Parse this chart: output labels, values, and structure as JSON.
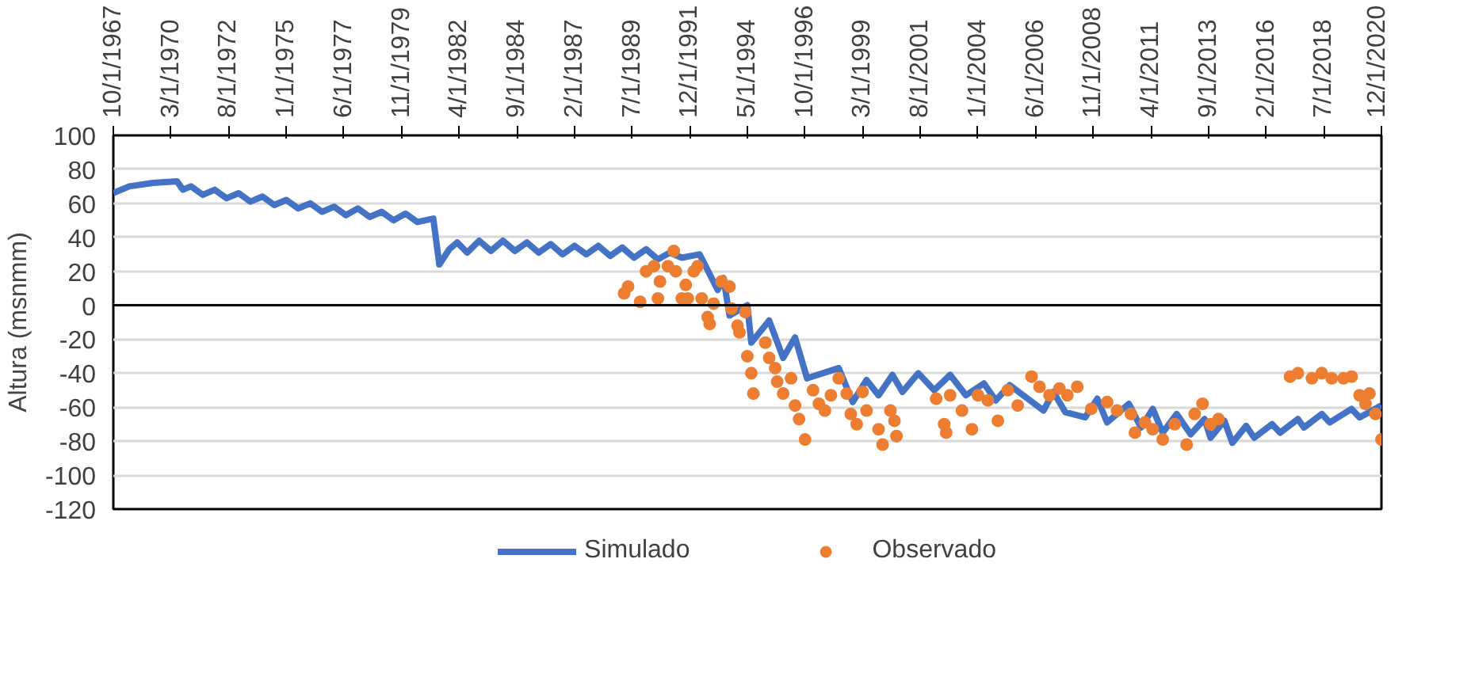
{
  "chart_data": {
    "type": "line",
    "ylabel": "Altura (msnmm)",
    "xlim": [
      "1967-10-01",
      "2020-12-01"
    ],
    "xticks": [
      {
        "value": "1967-10-01",
        "label": "10/1/1967"
      },
      {
        "value": "1970-03-01",
        "label": "3/1/1970"
      },
      {
        "value": "1972-08-01",
        "label": "8/1/1972"
      },
      {
        "value": "1975-01-01",
        "label": "1/1/1975"
      },
      {
        "value": "1977-06-01",
        "label": "6/1/1977"
      },
      {
        "value": "1979-11-01",
        "label": "11/1/1979"
      },
      {
        "value": "1982-04-01",
        "label": "4/1/1982"
      },
      {
        "value": "1984-09-01",
        "label": "9/1/1984"
      },
      {
        "value": "1987-02-01",
        "label": "2/1/1987"
      },
      {
        "value": "1989-07-01",
        "label": "7/1/1989"
      },
      {
        "value": "1991-12-01",
        "label": "12/1/1991"
      },
      {
        "value": "1994-05-01",
        "label": "5/1/1994"
      },
      {
        "value": "1996-10-01",
        "label": "10/1/1996"
      },
      {
        "value": "1999-03-01",
        "label": "3/1/1999"
      },
      {
        "value": "2001-08-01",
        "label": "8/1/2001"
      },
      {
        "value": "2004-01-01",
        "label": "1/1/2004"
      },
      {
        "value": "2006-06-01",
        "label": "6/1/2006"
      },
      {
        "value": "2008-11-01",
        "label": "11/1/2008"
      },
      {
        "value": "2011-04-01",
        "label": "4/1/2011"
      },
      {
        "value": "2013-09-01",
        "label": "9/1/2013"
      },
      {
        "value": "2016-02-01",
        "label": "2/1/2016"
      },
      {
        "value": "2018-07-01",
        "label": "7/1/2018"
      },
      {
        "value": "2020-12-01",
        "label": "12/1/2020"
      }
    ],
    "ylim": [
      -120,
      100
    ],
    "yticks": [
      100,
      80,
      60,
      40,
      20,
      0,
      -20,
      -40,
      -60,
      -80,
      -100,
      -120
    ],
    "grid": "y",
    "legend": "bottom",
    "marker": "none",
    "ref_lines": [
      {
        "axis": "y",
        "value": 0,
        "color": "#000000"
      }
    ],
    "series": [
      {
        "name": "Simulado",
        "color": "#4472c4",
        "x": [
          "1967-10",
          "1968-06",
          "1969-06",
          "1970-06",
          "1970-09",
          "1971-01",
          "1971-07",
          "1972-01",
          "1972-07",
          "1973-01",
          "1973-07",
          "1974-01",
          "1974-07",
          "1975-01",
          "1975-07",
          "1976-01",
          "1976-07",
          "1977-01",
          "1977-07",
          "1978-01",
          "1978-07",
          "1979-01",
          "1979-07",
          "1980-01",
          "1980-07",
          "1981-03",
          "1981-06",
          "1981-11",
          "1982-03",
          "1982-08",
          "1983-02",
          "1983-08",
          "1984-02",
          "1984-08",
          "1985-02",
          "1985-08",
          "1986-02",
          "1986-08",
          "1987-02",
          "1987-08",
          "1988-02",
          "1988-08",
          "1989-02",
          "1989-08",
          "1990-02",
          "1990-08",
          "1991-02",
          "1991-08",
          "1992-05",
          "1993-02",
          "1993-05",
          "1993-08",
          "1994-05",
          "1994-07",
          "1995-04",
          "1995-11",
          "1996-05",
          "1996-11",
          "1998-03",
          "1998-10",
          "1999-05",
          "1999-11",
          "2000-06",
          "2000-11",
          "2001-07",
          "2002-03",
          "2002-11",
          "2003-07",
          "2004-04",
          "2004-10",
          "2005-05",
          "2006-10",
          "2007-03",
          "2007-09",
          "2008-07",
          "2009-01",
          "2009-06",
          "2010-05",
          "2010-11",
          "2011-05",
          "2011-10",
          "2012-05",
          "2012-12",
          "2013-07",
          "2013-10",
          "2014-05",
          "2014-09",
          "2015-04",
          "2015-08",
          "2016-05",
          "2016-09",
          "2017-06",
          "2017-09",
          "2018-06",
          "2018-10",
          "2019-09",
          "2020-01",
          "2020-12"
        ],
        "values": [
          66,
          70,
          72,
          73,
          68,
          70,
          65,
          68,
          63,
          66,
          61,
          64,
          59,
          62,
          57,
          60,
          55,
          58,
          53,
          57,
          52,
          55,
          50,
          54,
          49,
          51,
          24,
          33,
          37,
          31,
          38,
          32,
          38,
          32,
          37,
          31,
          36,
          30,
          35,
          30,
          35,
          29,
          34,
          28,
          33,
          27,
          31,
          28,
          30,
          9,
          16,
          -6,
          0,
          -22,
          -9,
          -31,
          -19,
          -43,
          -37,
          -57,
          -44,
          -53,
          -41,
          -51,
          -40,
          -50,
          -41,
          -53,
          -46,
          -56,
          -47,
          -62,
          -51,
          -63,
          -66,
          -55,
          -69,
          -58,
          -72,
          -61,
          -75,
          -64,
          -76,
          -67,
          -78,
          -68,
          -81,
          -71,
          -78,
          -70,
          -75,
          -67,
          -72,
          -64,
          -69,
          -61,
          -66,
          -59
        ]
      },
      {
        "name": "Observado",
        "type": "scatter",
        "marker": "circle",
        "color": "#ed7d31",
        "x": [
          "1989-03",
          "1989-05",
          "1989-11",
          "1990-02",
          "1990-06",
          "1990-08",
          "1990-09",
          "1991-01",
          "1991-04",
          "1991-05",
          "1991-08",
          "1991-10",
          "1991-11",
          "1992-02",
          "1992-04",
          "1992-06",
          "1992-09",
          "1992-10",
          "1992-12",
          "1993-04",
          "1993-08",
          "1993-09",
          "1993-12",
          "1994-01",
          "1994-04",
          "1994-05",
          "1994-07",
          "1994-08",
          "1995-02",
          "1995-04",
          "1995-07",
          "1995-08",
          "1995-11",
          "1996-03",
          "1996-05",
          "1996-07",
          "1996-10",
          "1997-02",
          "1997-05",
          "1997-08",
          "1997-11",
          "1998-03",
          "1998-07",
          "1998-09",
          "1998-12",
          "1999-03",
          "1999-05",
          "1999-11",
          "2000-01",
          "2000-05",
          "2000-07",
          "2000-08",
          "2002-04",
          "2002-08",
          "2002-09",
          "2002-11",
          "2003-05",
          "2003-10",
          "2004-01",
          "2004-06",
          "2004-11",
          "2005-04",
          "2005-09",
          "2006-04",
          "2006-08",
          "2007-01",
          "2007-06",
          "2007-10",
          "2008-03",
          "2008-10",
          "2009-06",
          "2009-11",
          "2010-06",
          "2010-08",
          "2011-01",
          "2011-05",
          "2011-10",
          "2012-04",
          "2012-10",
          "2013-02",
          "2013-06",
          "2013-10",
          "2014-02",
          "2017-02",
          "2017-06",
          "2018-01",
          "2018-06",
          "2018-11",
          "2019-05",
          "2019-09",
          "2020-01",
          "2020-04",
          "2020-06",
          "2020-09",
          "2020-12"
        ],
        "values": [
          7,
          11,
          2,
          20,
          23,
          4,
          14,
          23,
          32,
          20,
          4,
          12,
          4,
          20,
          23,
          4,
          -7,
          -11,
          1,
          14,
          11,
          -2,
          -12,
          -16,
          -4,
          -30,
          -40,
          -52,
          -22,
          -31,
          -37,
          -45,
          -52,
          -43,
          -59,
          -67,
          -79,
          -50,
          -58,
          -62,
          -53,
          -43,
          -52,
          -64,
          -70,
          -51,
          -62,
          -73,
          -82,
          -62,
          -68,
          -77,
          -55,
          -70,
          -75,
          -53,
          -62,
          -73,
          -53,
          -56,
          -68,
          -50,
          -59,
          -42,
          -48,
          -53,
          -49,
          -53,
          -48,
          -61,
          -57,
          -62,
          -64,
          -75,
          -69,
          -73,
          -79,
          -70,
          -82,
          -64,
          -58,
          -70,
          -67,
          -42,
          -40,
          -43,
          -40,
          -43,
          -43,
          -42,
          -53,
          -58,
          -52,
          -64,
          -79
        ]
      }
    ]
  }
}
